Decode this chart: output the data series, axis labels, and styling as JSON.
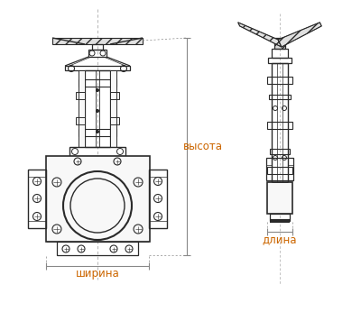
{
  "bg_color": "#ffffff",
  "line_color": "#2a2a2a",
  "dim_color": "#cc6600",
  "dim_line_color": "#888888",
  "label_ширина": "ширина",
  "label_длина": "длина",
  "label_высота": "высота",
  "figsize": [
    4.0,
    3.46
  ],
  "dpi": 100
}
